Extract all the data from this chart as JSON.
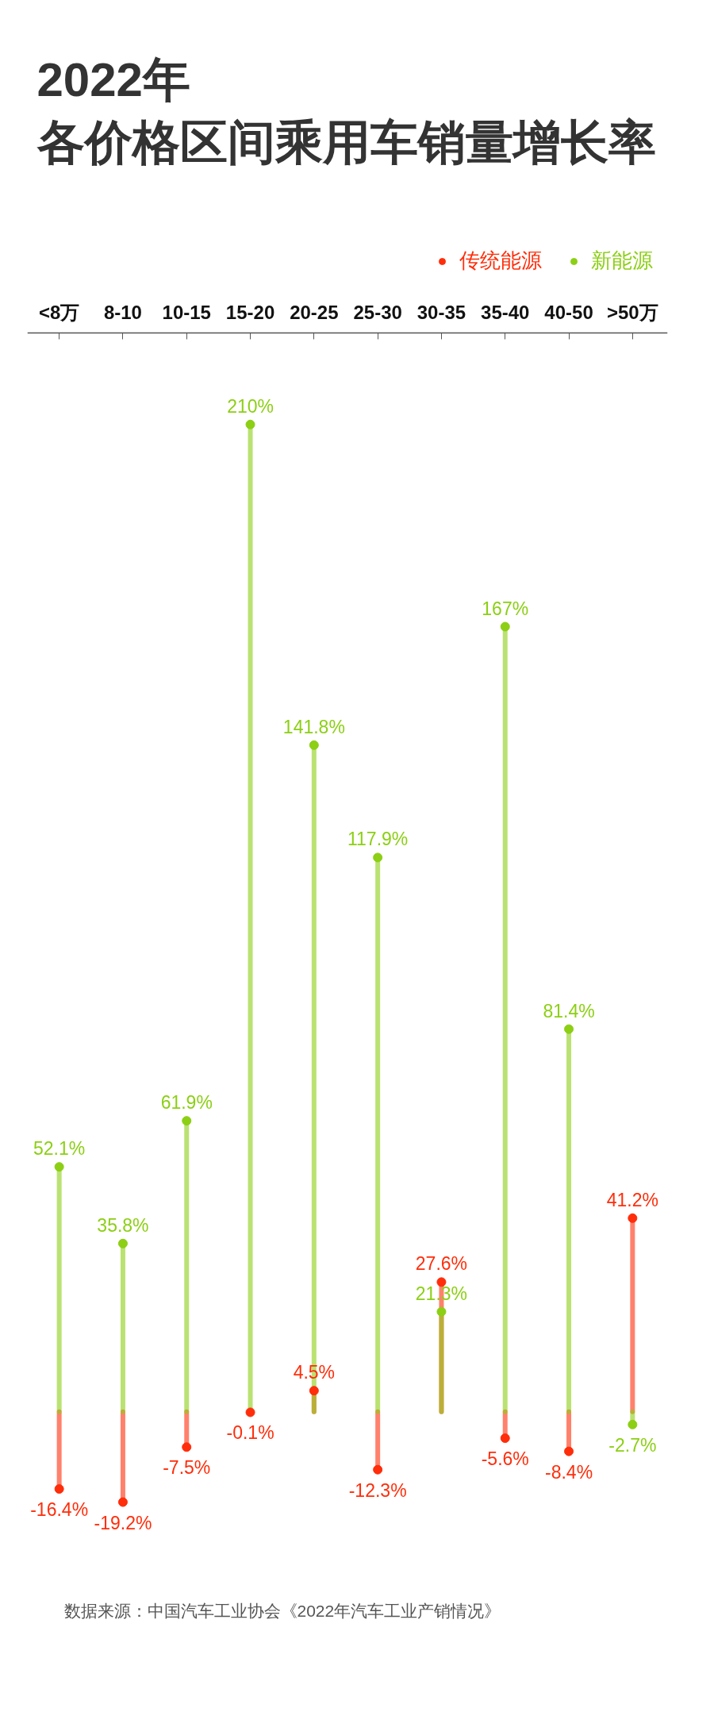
{
  "chart_data": {
    "type": "lollipop",
    "title": "2022年",
    "subtitle": "各价格区间乘用车销量增长率",
    "annotations": [
      "数据来源：中国汽车工业协会《2022年汽车工业产销情况》"
    ],
    "categories": [
      "<8万",
      "8-10",
      "10-15",
      "15-20",
      "20-25",
      "25-30",
      "30-35",
      "35-40",
      "40-50",
      ">50万"
    ],
    "series": [
      {
        "name": "传统能源",
        "color": "#ff2d0a",
        "values": [
          -16.4,
          -19.2,
          -7.5,
          -0.1,
          4.5,
          -12.3,
          27.6,
          -5.6,
          -8.4,
          41.2
        ],
        "value_labels": [
          "-16.4%",
          "-19.2%",
          "-7.5%",
          "-0.1%",
          "4.5%",
          "-12.3%",
          "27.6%",
          "-5.6%",
          "-8.4%",
          "41.2%"
        ]
      },
      {
        "name": "新能源",
        "color": "#8ccf14",
        "values": [
          52.1,
          35.8,
          61.9,
          210,
          141.8,
          117.9,
          21.3,
          167,
          81.4,
          -2.7
        ],
        "value_labels": [
          "52.1%",
          "35.8%",
          "61.9%",
          "210%",
          "141.8%",
          "117.9%",
          "21.3%",
          "167%",
          "81.4%",
          "-2.7%"
        ]
      }
    ],
    "legend": "top right",
    "marker": "circle"
  }
}
